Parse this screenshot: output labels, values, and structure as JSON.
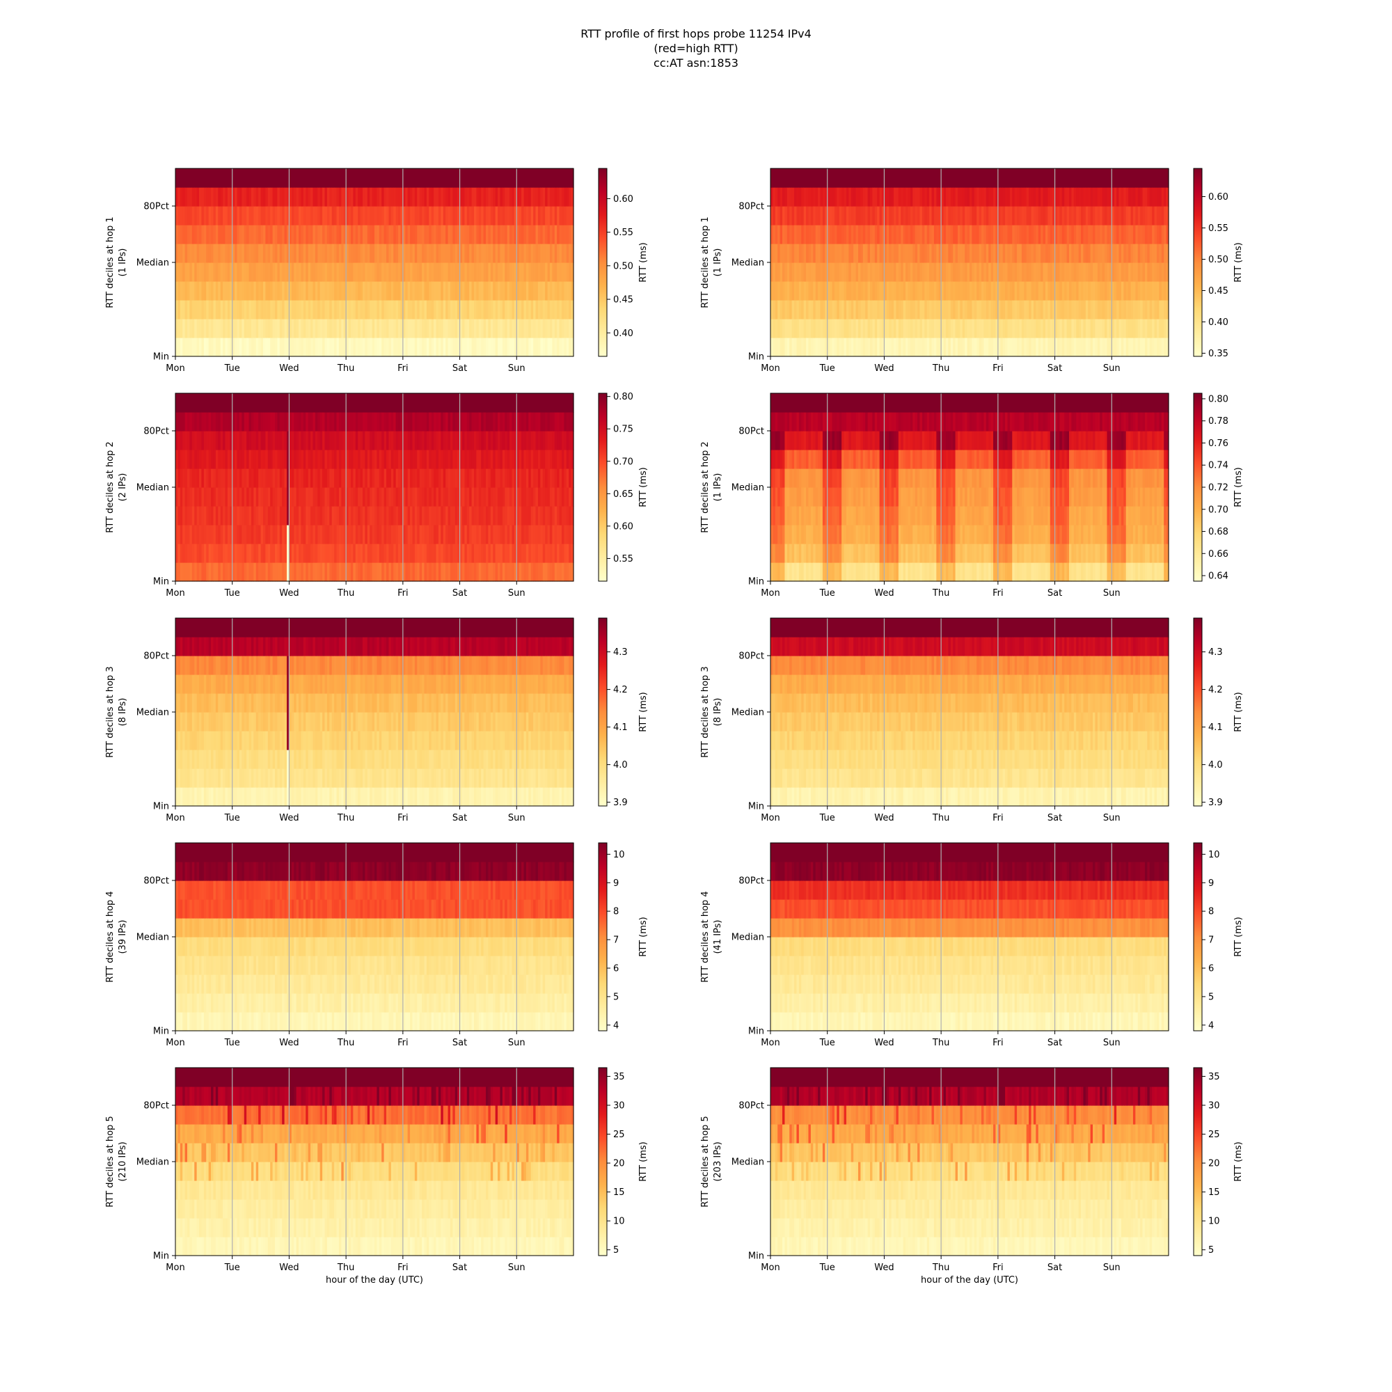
{
  "figure": {
    "title_lines": [
      "RTT profile of first hops probe 11254 IPv4",
      "(red=high RTT)",
      "cc:AT asn:1853"
    ]
  },
  "chart_data": [
    {
      "type": "heatmap",
      "row": 0,
      "col": 0,
      "ylabel_lines": [
        "RTT deciles at hop 1",
        "(1 IPs)"
      ],
      "ytick_labels": [
        "Min",
        "Median",
        "80Pct"
      ],
      "x_tick_labels": [
        "Mon",
        "Tue",
        "Wed",
        "Thu",
        "Fri",
        "Sat",
        "Sun"
      ],
      "xlabel": "",
      "colorbar": {
        "label": "RTT (ms)",
        "vmin": 0.365,
        "vmax": 0.645,
        "ticks": [
          0.4,
          0.45,
          0.5,
          0.55,
          0.6
        ],
        "tick_labels": [
          "0.40",
          "0.45",
          "0.50",
          "0.55",
          "0.60"
        ]
      },
      "decile_values": [
        0.375,
        0.41,
        0.44,
        0.465,
        0.485,
        0.505,
        0.525,
        0.545,
        0.57,
        0.645
      ],
      "pattern": "uniform"
    },
    {
      "type": "heatmap",
      "row": 0,
      "col": 1,
      "ylabel_lines": [
        "RTT deciles at hop 1",
        "(1 IPs)"
      ],
      "ytick_labels": [
        "Min",
        "Median",
        "80Pct"
      ],
      "x_tick_labels": [
        "Mon",
        "Tue",
        "Wed",
        "Thu",
        "Fri",
        "Sat",
        "Sun"
      ],
      "xlabel": "",
      "colorbar": {
        "label": "RTT (ms)",
        "vmin": 0.345,
        "vmax": 0.645,
        "ticks": [
          0.35,
          0.4,
          0.45,
          0.5,
          0.55,
          0.6
        ],
        "tick_labels": [
          "0.35",
          "0.40",
          "0.45",
          "0.50",
          "0.55",
          "0.60"
        ]
      },
      "decile_values": [
        0.365,
        0.405,
        0.435,
        0.46,
        0.48,
        0.5,
        0.52,
        0.545,
        0.57,
        0.645
      ],
      "pattern": "uniform"
    },
    {
      "type": "heatmap",
      "row": 1,
      "col": 0,
      "ylabel_lines": [
        "RTT deciles at hop 2",
        "(2 IPs)"
      ],
      "ytick_labels": [
        "Min",
        "Median",
        "80Pct"
      ],
      "x_tick_labels": [
        "Mon",
        "Tue",
        "Wed",
        "Thu",
        "Fri",
        "Sat",
        "Sun"
      ],
      "xlabel": "",
      "colorbar": {
        "label": "RTT (ms)",
        "vmin": 0.515,
        "vmax": 0.805,
        "ticks": [
          0.55,
          0.6,
          0.65,
          0.7,
          0.75,
          0.8
        ],
        "tick_labels": [
          "0.55",
          "0.60",
          "0.65",
          "0.70",
          "0.75",
          "0.80"
        ]
      },
      "decile_values": [
        0.68,
        0.7,
        0.71,
        0.715,
        0.72,
        0.725,
        0.735,
        0.75,
        0.775,
        0.805
      ],
      "pattern": "spike"
    },
    {
      "type": "heatmap",
      "row": 1,
      "col": 1,
      "ylabel_lines": [
        "RTT deciles at hop 2",
        "(1 IPs)"
      ],
      "ytick_labels": [
        "Min",
        "Median",
        "80Pct"
      ],
      "x_tick_labels": [
        "Mon",
        "Tue",
        "Wed",
        "Thu",
        "Fri",
        "Sat",
        "Sun"
      ],
      "xlabel": "",
      "colorbar": {
        "label": "RTT (ms)",
        "vmin": 0.635,
        "vmax": 0.805,
        "ticks": [
          0.64,
          0.66,
          0.68,
          0.7,
          0.72,
          0.74,
          0.76,
          0.78,
          0.8
        ],
        "tick_labels": [
          "0.64",
          "0.66",
          "0.68",
          "0.70",
          "0.72",
          "0.74",
          "0.76",
          "0.78",
          "0.80"
        ]
      },
      "decile_values": [
        0.665,
        0.69,
        0.7,
        0.705,
        0.71,
        0.715,
        0.735,
        0.765,
        0.785,
        0.805
      ],
      "pattern": "diurnal"
    },
    {
      "type": "heatmap",
      "row": 2,
      "col": 0,
      "ylabel_lines": [
        "RTT deciles at hop 3",
        "(8 IPs)"
      ],
      "ytick_labels": [
        "Min",
        "Median",
        "80Pct"
      ],
      "x_tick_labels": [
        "Mon",
        "Tue",
        "Wed",
        "Thu",
        "Fri",
        "Sat",
        "Sun"
      ],
      "xlabel": "",
      "colorbar": {
        "label": "RTT (ms)",
        "vmin": 3.89,
        "vmax": 4.39,
        "ticks": [
          3.9,
          4.0,
          4.1,
          4.2,
          4.3
        ],
        "tick_labels": [
          "3.9",
          "4.0",
          "4.1",
          "4.2",
          "4.3"
        ]
      },
      "decile_values": [
        3.93,
        3.98,
        4.0,
        4.02,
        4.04,
        4.06,
        4.09,
        4.14,
        4.33,
        4.39
      ],
      "pattern": "spike"
    },
    {
      "type": "heatmap",
      "row": 2,
      "col": 1,
      "ylabel_lines": [
        "RTT deciles at hop 3",
        "(8 IPs)"
      ],
      "ytick_labels": [
        "Min",
        "Median",
        "80Pct"
      ],
      "x_tick_labels": [
        "Mon",
        "Tue",
        "Wed",
        "Thu",
        "Fri",
        "Sat",
        "Sun"
      ],
      "xlabel": "",
      "colorbar": {
        "label": "RTT (ms)",
        "vmin": 3.89,
        "vmax": 4.39,
        "ticks": [
          3.9,
          4.0,
          4.1,
          4.2,
          4.3
        ],
        "tick_labels": [
          "3.9",
          "4.0",
          "4.1",
          "4.2",
          "4.3"
        ]
      },
      "decile_values": [
        3.93,
        3.98,
        4.0,
        4.02,
        4.04,
        4.06,
        4.09,
        4.14,
        4.3,
        4.39
      ],
      "pattern": "uniform"
    },
    {
      "type": "heatmap",
      "row": 3,
      "col": 0,
      "ylabel_lines": [
        "RTT deciles at hop 4",
        "(39 IPs)"
      ],
      "ytick_labels": [
        "Min",
        "Median",
        "80Pct"
      ],
      "x_tick_labels": [
        "Mon",
        "Tue",
        "Wed",
        "Thu",
        "Fri",
        "Sat",
        "Sun"
      ],
      "xlabel": "",
      "colorbar": {
        "label": "RTT (ms)",
        "vmin": 3.8,
        "vmax": 10.4,
        "ticks": [
          4,
          5,
          6,
          7,
          8,
          9,
          10
        ],
        "tick_labels": [
          "4",
          "5",
          "6",
          "7",
          "8",
          "9",
          "10"
        ]
      },
      "decile_values": [
        4.2,
        4.5,
        4.8,
        5.0,
        5.3,
        6.0,
        7.9,
        7.9,
        10.2,
        10.4
      ],
      "pattern": "uniform"
    },
    {
      "type": "heatmap",
      "row": 3,
      "col": 1,
      "ylabel_lines": [
        "RTT deciles at hop 4",
        "(41 IPs)"
      ],
      "ytick_labels": [
        "Min",
        "Median",
        "80Pct"
      ],
      "x_tick_labels": [
        "Mon",
        "Tue",
        "Wed",
        "Thu",
        "Fri",
        "Sat",
        "Sun"
      ],
      "xlabel": "",
      "colorbar": {
        "label": "RTT (ms)",
        "vmin": 3.8,
        "vmax": 10.4,
        "ticks": [
          4,
          5,
          6,
          7,
          8,
          9,
          10
        ],
        "tick_labels": [
          "4",
          "5",
          "6",
          "7",
          "8",
          "9",
          "10"
        ]
      },
      "decile_values": [
        4.2,
        4.5,
        4.8,
        5.0,
        5.3,
        7.0,
        7.9,
        8.4,
        10.2,
        10.4
      ],
      "pattern": "uniform"
    },
    {
      "type": "heatmap",
      "row": 4,
      "col": 0,
      "ylabel_lines": [
        "RTT deciles at hop 5",
        "(210 IPs)"
      ],
      "ytick_labels": [
        "Min",
        "Median",
        "80Pct"
      ],
      "x_tick_labels": [
        "Mon",
        "Tue",
        "Wed",
        "Thu",
        "Fri",
        "Sat",
        "Sun"
      ],
      "xlabel": "hour of the day (UTC)",
      "colorbar": {
        "label": "RTT (ms)",
        "vmin": 4.0,
        "vmax": 36.5,
        "ticks": [
          5,
          10,
          15,
          20,
          25,
          30,
          35
        ],
        "tick_labels": [
          "5",
          "10",
          "15",
          "20",
          "25",
          "30",
          "35"
        ]
      },
      "decile_values": [
        6,
        7,
        8,
        9,
        11,
        14,
        17,
        22,
        33,
        36.5
      ],
      "pattern": "noisy"
    },
    {
      "type": "heatmap",
      "row": 4,
      "col": 1,
      "ylabel_lines": [
        "RTT deciles at hop 5",
        "(203 IPs)"
      ],
      "ytick_labels": [
        "Min",
        "Median",
        "80Pct"
      ],
      "x_tick_labels": [
        "Mon",
        "Tue",
        "Wed",
        "Thu",
        "Fri",
        "Sat",
        "Sun"
      ],
      "xlabel": "hour of the day (UTC)",
      "colorbar": {
        "label": "RTT (ms)",
        "vmin": 4.0,
        "vmax": 36.5,
        "ticks": [
          5,
          10,
          15,
          20,
          25,
          30,
          35
        ],
        "tick_labels": [
          "5",
          "10",
          "15",
          "20",
          "25",
          "30",
          "35"
        ]
      },
      "decile_values": [
        6,
        7,
        8,
        9,
        11,
        14,
        17,
        20,
        33,
        36.5
      ],
      "pattern": "noisy"
    }
  ]
}
